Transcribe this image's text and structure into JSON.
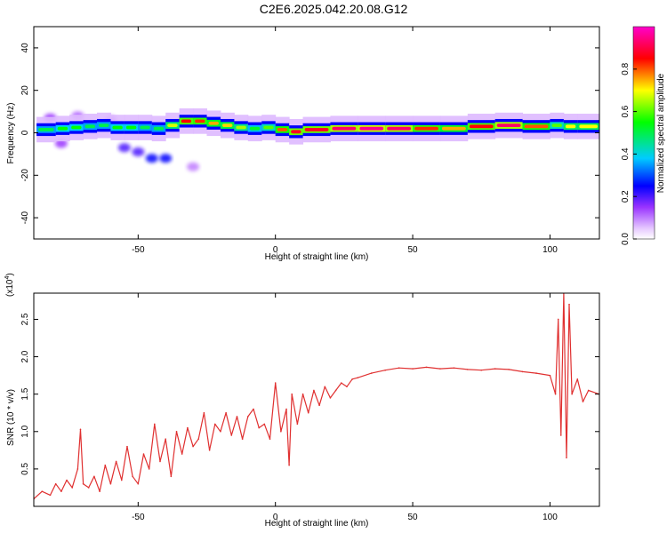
{
  "title": "C2E6.2025.042.20.08.G12",
  "chart_data": [
    {
      "type": "heatmap",
      "title": "",
      "xlabel": "Height of straight line (km)",
      "ylabel": "Frequency (Hz)",
      "xlim": [
        -88,
        118
      ],
      "ylim": [
        -50,
        50
      ],
      "xticks": [
        -50,
        0,
        50,
        100
      ],
      "yticks": [
        -40,
        -20,
        0,
        20,
        40
      ],
      "colorbar": {
        "label": "Normalized spectral amplitude",
        "range": [
          0,
          1
        ],
        "ticks": [
          "0.0",
          "0.2",
          "0.4",
          "0.6",
          "0.8"
        ],
        "colormap": [
          "#ffffff",
          "#cc66ff",
          "#0000ff",
          "#00ccff",
          "#00ff00",
          "#ffff00",
          "#ff0000",
          "#ff00ff"
        ]
      },
      "ridge": {
        "x": [
          -87,
          -80,
          -75,
          -70,
          -65,
          -60,
          -55,
          -50,
          -45,
          -40,
          -35,
          -30,
          -25,
          -20,
          -15,
          -10,
          -5,
          0,
          5,
          10,
          20,
          30,
          40,
          50,
          60,
          70,
          80,
          90,
          100,
          105,
          110,
          118
        ],
        "freq": [
          2,
          1,
          3,
          2,
          4,
          3,
          2,
          3,
          2,
          2,
          5,
          6,
          5,
          4,
          3,
          2,
          2,
          3,
          0,
          1,
          2,
          2,
          2,
          2,
          2,
          2,
          4,
          3,
          3,
          4,
          2,
          4
        ],
        "amplitude": [
          0.5,
          0.5,
          0.6,
          0.5,
          0.5,
          0.5,
          0.6,
          0.5,
          0.5,
          0.5,
          0.85,
          0.85,
          0.8,
          0.7,
          0.75,
          0.55,
          0.5,
          0.7,
          0.9,
          0.85,
          0.9,
          0.95,
          0.95,
          0.9,
          0.75,
          0.75,
          0.95,
          0.9,
          0.7,
          0.5,
          0.9,
          0.5
        ]
      },
      "blobs": [
        {
          "x": -82,
          "freq": 7,
          "amplitude": 0.15
        },
        {
          "x": -78,
          "freq": -5,
          "amplitude": 0.15
        },
        {
          "x": -72,
          "freq": 8,
          "amplitude": 0.12
        },
        {
          "x": -60,
          "freq": 6,
          "amplitude": 0.12
        },
        {
          "x": -55,
          "freq": -7,
          "amplitude": 0.2
        },
        {
          "x": -50,
          "freq": -9,
          "amplitude": 0.2
        },
        {
          "x": -45,
          "freq": -12,
          "amplitude": 0.25
        },
        {
          "x": -40,
          "freq": -12,
          "amplitude": 0.25
        },
        {
          "x": -30,
          "freq": -16,
          "amplitude": 0.1
        }
      ]
    },
    {
      "type": "line",
      "title": "",
      "xlabel": "Height of straight line (km)",
      "ylabel": "SNR (10 * v/v)",
      "scale_label": "(x10",
      "scale_exponent": "4",
      "xlim": [
        -88,
        118
      ],
      "ylim": [
        0,
        2.85
      ],
      "xticks": [
        -50,
        0,
        50,
        100
      ],
      "yticks": [
        0.5,
        1.0,
        1.5,
        2.0,
        2.5
      ],
      "color": "#e03030",
      "series": [
        {
          "x": [
            -88,
            -85,
            -82,
            -80,
            -78,
            -76,
            -74,
            -72,
            -71,
            -70,
            -68,
            -66,
            -64,
            -62,
            -60,
            -58,
            -56,
            -54,
            -52,
            -50,
            -48,
            -46,
            -44,
            -42,
            -40,
            -38,
            -36,
            -34,
            -32,
            -30,
            -28,
            -26,
            -24,
            -22,
            -20,
            -18,
            -16,
            -14,
            -12,
            -10,
            -8,
            -6,
            -4,
            -2,
            0,
            2,
            4,
            5,
            6,
            8,
            10,
            12,
            14,
            16,
            18,
            20,
            22,
            24,
            26,
            28,
            30,
            35,
            40,
            45,
            50,
            55,
            60,
            65,
            70,
            75,
            80,
            85,
            90,
            95,
            100,
            102,
            103,
            104,
            105,
            106,
            107,
            108,
            110,
            112,
            114,
            118
          ],
          "values": [
            0.1,
            0.2,
            0.15,
            0.3,
            0.2,
            0.35,
            0.25,
            0.5,
            1.03,
            0.3,
            0.25,
            0.4,
            0.2,
            0.55,
            0.3,
            0.6,
            0.35,
            0.8,
            0.4,
            0.3,
            0.7,
            0.5,
            1.1,
            0.6,
            0.9,
            0.4,
            1.0,
            0.7,
            1.05,
            0.8,
            0.9,
            1.25,
            0.75,
            1.1,
            1.0,
            1.25,
            0.95,
            1.2,
            0.9,
            1.2,
            1.3,
            1.05,
            1.1,
            0.9,
            1.65,
            1.0,
            1.3,
            0.55,
            1.5,
            1.1,
            1.5,
            1.25,
            1.55,
            1.35,
            1.6,
            1.45,
            1.55,
            1.65,
            1.6,
            1.7,
            1.72,
            1.78,
            1.82,
            1.85,
            1.84,
            1.86,
            1.84,
            1.85,
            1.83,
            1.82,
            1.84,
            1.83,
            1.8,
            1.78,
            1.75,
            1.5,
            2.5,
            0.95,
            2.85,
            0.65,
            2.7,
            1.5,
            1.7,
            1.4,
            1.55,
            1.5
          ]
        }
      ]
    }
  ]
}
